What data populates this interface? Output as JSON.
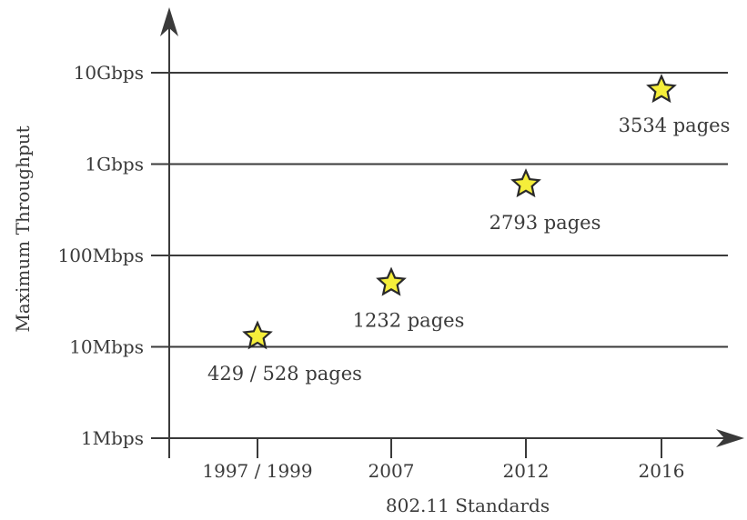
{
  "chart_data": {
    "type": "scatter",
    "title": "",
    "xlabel": "802.11 Standards",
    "ylabel": "Maximum Throughput",
    "y_scale": "log",
    "y_unit": "bps",
    "categories": [
      "1997 / 1999",
      "2007",
      "2012",
      "2016"
    ],
    "yticks": [
      {
        "label": "1Mbps",
        "value": 1000000
      },
      {
        "label": "10Mbps",
        "value": 10000000
      },
      {
        "label": "100Mbps",
        "value": 100000000
      },
      {
        "label": "1Gbps",
        "value": 1000000000
      },
      {
        "label": "10Gbps",
        "value": 10000000000
      }
    ],
    "grid": true,
    "marker": "star",
    "colors": {
      "marker_fill": "#f5ee3a",
      "marker_stroke": "#2a2a2a",
      "axis": "#3a3a3a"
    },
    "points": [
      {
        "category": "1997 / 1999",
        "y": 13000000,
        "label": "429 / 528 pages"
      },
      {
        "category": "2007",
        "y": 50000000,
        "label": "1232 pages"
      },
      {
        "category": "2012",
        "y": 600000000,
        "label": "2793 pages"
      },
      {
        "category": "2016",
        "y": 6500000000,
        "label": "3534 pages"
      }
    ]
  }
}
